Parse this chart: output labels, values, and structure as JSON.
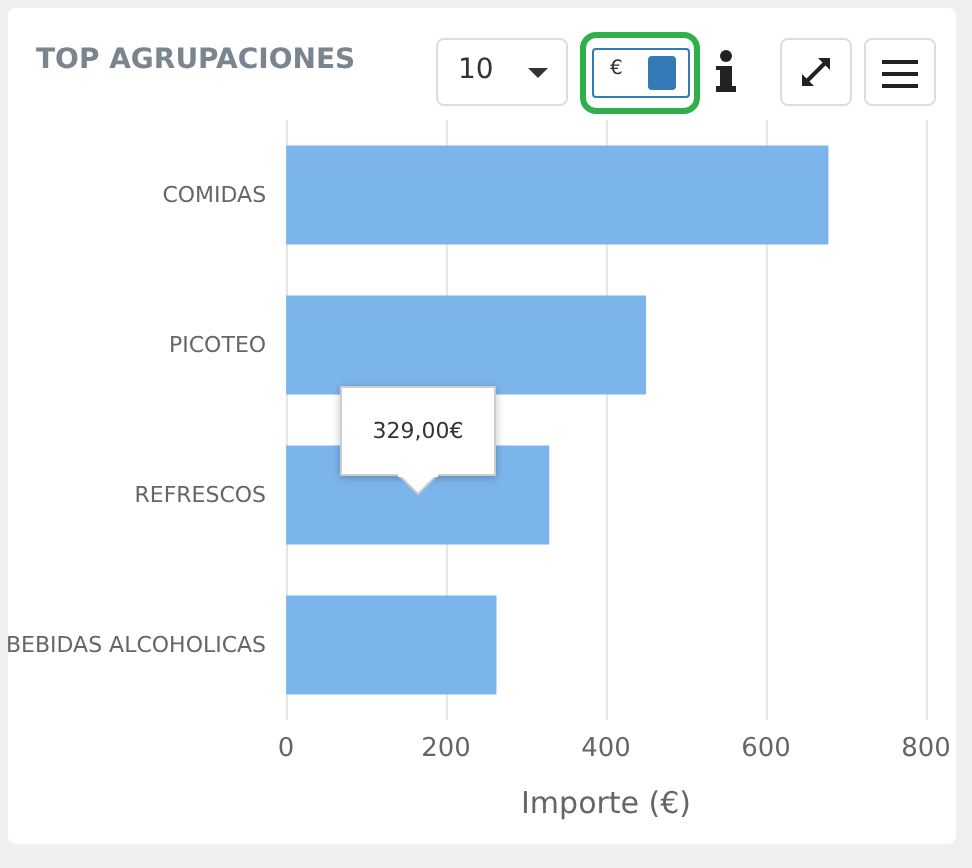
{
  "chart_data": {
    "type": "bar",
    "orientation": "horizontal",
    "title": "TOP AGRUPACIONES",
    "xlabel": "Importe (€)",
    "categories": [
      "COMIDAS",
      "PICOTEO",
      "REFRESCOS",
      "BEBIDAS ALCOHOLICAS"
    ],
    "values": [
      678,
      450,
      329,
      263
    ],
    "color": "#7cb5ec",
    "xlim": [
      0,
      800
    ],
    "xticks": [
      0,
      200,
      400,
      600,
      800
    ],
    "grid": "x",
    "annotations": [
      "329,00€",
      "10",
      "€"
    ]
  }
}
